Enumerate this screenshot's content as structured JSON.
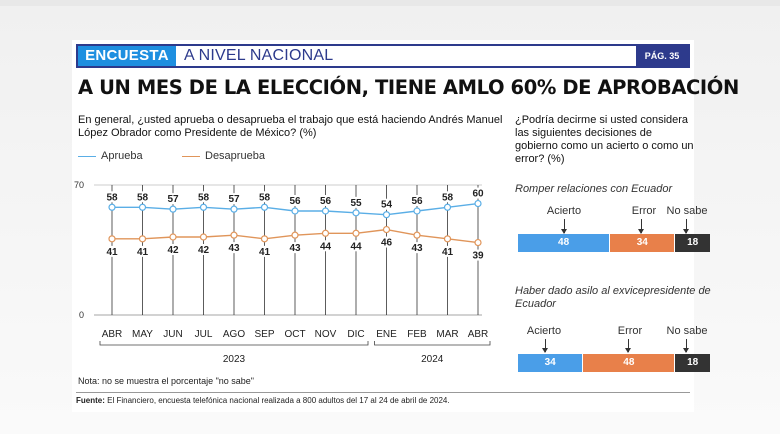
{
  "header": {
    "tag": "ENCUESTA",
    "section": "A NIVEL NACIONAL",
    "page": "PÁG. 35"
  },
  "headline": "A UN MES DE LA ELECCIÓN, TIENE AMLO 60% DE APROBACIÓN",
  "question": "En general, ¿usted aprueba o desaprueba el trabajo que está haciendo Andrés Manuel López Obrador como Presidente de México? (%)",
  "colors": {
    "aprueba": "#5aaee6",
    "desaprueba": "#e0955a",
    "acierto": "#4a9ee8",
    "error": "#e8804a",
    "nosabe": "#333333",
    "brand": "#2d3a8c",
    "brand_light": "#1e8fe0"
  },
  "chart_data": [
    {
      "type": "line",
      "categories": [
        "ABR",
        "MAY",
        "JUN",
        "JUL",
        "AGO",
        "SEP",
        "OCT",
        "NOV",
        "DIC",
        "ENE",
        "FEB",
        "MAR",
        "ABR"
      ],
      "series": [
        {
          "name": "Aprueba",
          "values": [
            58,
            58,
            57,
            58,
            57,
            58,
            56,
            56,
            55,
            54,
            56,
            58,
            60
          ]
        },
        {
          "name": "Desaprueba",
          "values": [
            41,
            41,
            42,
            42,
            43,
            41,
            43,
            44,
            44,
            46,
            43,
            41,
            39
          ]
        }
      ],
      "ylim": [
        0,
        70
      ],
      "yticks": [
        0,
        70
      ],
      "year_groups": [
        {
          "label": "2023",
          "from": 0,
          "to": 8
        },
        {
          "label": "2024",
          "from": 9,
          "to": 12
        }
      ],
      "grid": "vertical lines per month",
      "legend": "top-left"
    },
    {
      "type": "bar",
      "subtitle": "Romper relaciones con Ecuador",
      "categories": [
        "Acierto",
        "Error",
        "No sabe"
      ],
      "values": [
        48,
        34,
        18
      ]
    },
    {
      "type": "bar",
      "subtitle": "Haber dado asilo al exvicepresidente de Ecuador",
      "categories": [
        "Acierto",
        "Error",
        "No sabe"
      ],
      "values": [
        34,
        48,
        18
      ]
    }
  ],
  "right": {
    "question": "¿Podría decirme si usted considera las siguientes decisiones de gobierno como un acierto o como un error? (%)"
  },
  "note": "Nota: no se muestra el porcentaje \"no sabe\"",
  "source": {
    "label": "Fuente:",
    "text": "El Financiero, encuesta telefónica nacional realizada a 800 adultos del 17 al 24 de abril de 2024."
  }
}
